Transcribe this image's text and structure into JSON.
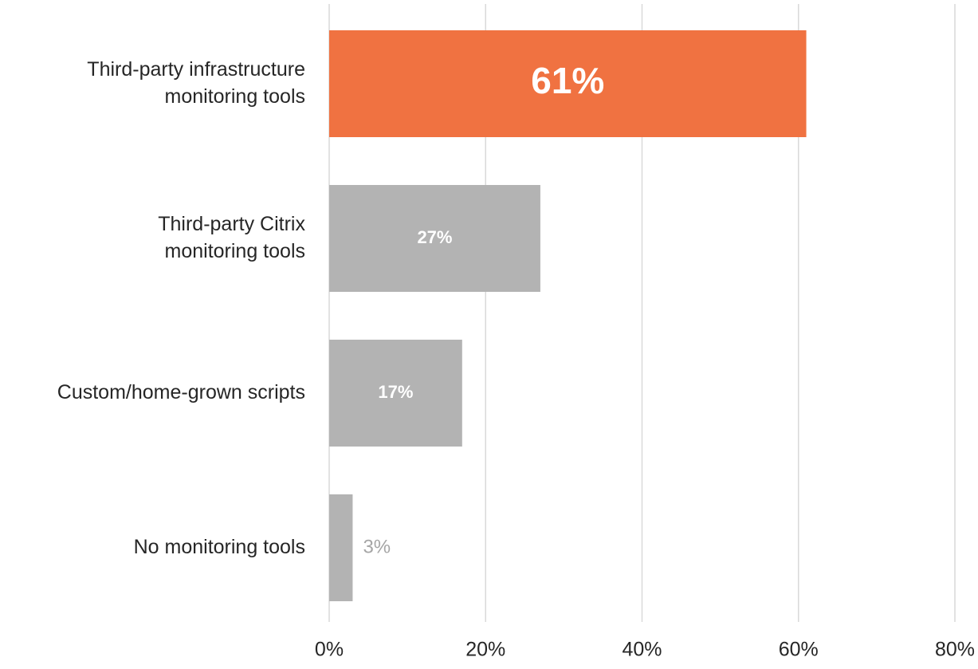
{
  "chart_data": {
    "type": "bar",
    "orientation": "horizontal",
    "categories": [
      [
        "Third-party infrastructure",
        "monitoring tools"
      ],
      [
        "Third-party Citrix",
        "monitoring tools"
      ],
      [
        "Custom/home-grown scripts"
      ],
      [
        "No monitoring tools"
      ]
    ],
    "values": [
      61,
      27,
      17,
      3
    ],
    "data_labels": [
      "61%",
      "27%",
      "17%",
      "3%"
    ],
    "xlim": [
      0,
      80
    ],
    "x_ticks": [
      0,
      20,
      40,
      60,
      80
    ],
    "x_tick_labels": [
      "0%",
      "20%",
      "40%",
      "60%",
      "80%"
    ],
    "grid": "vertical",
    "title": "",
    "xlabel": "",
    "ylabel": "",
    "colors": {
      "highlight": "#f07241",
      "default": "#b3b3b3",
      "grid": "#d9d9d9",
      "label_inside": "#ffffff",
      "label_outside": "#a6a6a6"
    }
  }
}
